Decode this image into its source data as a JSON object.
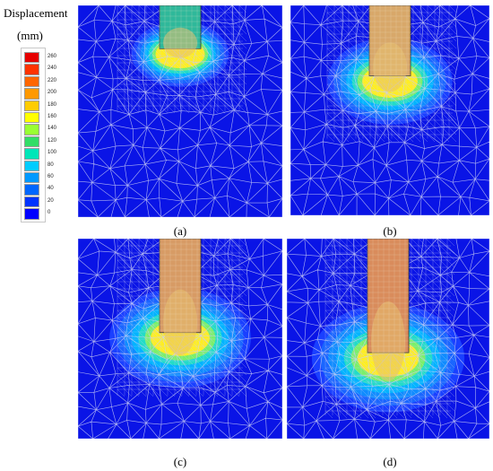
{
  "legend": {
    "title": "Displacement",
    "unit": "(mm)",
    "ticks": [
      "260",
      "240",
      "220",
      "200",
      "180",
      "160",
      "140",
      "120",
      "100",
      "80",
      "60",
      "40",
      "20",
      "0"
    ],
    "colors": [
      "#e60000",
      "#ff3300",
      "#ff6600",
      "#ff9900",
      "#ffcc00",
      "#ffff00",
      "#99ff33",
      "#33dd66",
      "#00e6b8",
      "#00ccff",
      "#0099ff",
      "#0066ff",
      "#0033ff",
      "#0000ff"
    ]
  },
  "panels": [
    {
      "id": "a",
      "caption": "(a)",
      "pile_color": "#2fb89a",
      "bulb_scale": 0.55,
      "penetration": 0.12
    },
    {
      "id": "b",
      "caption": "(b)",
      "pile_color": "#d8a86a",
      "bulb_scale": 0.8,
      "penetration": 0.25
    },
    {
      "id": "c",
      "caption": "(c)",
      "pile_color": "#d79b65",
      "bulb_scale": 0.95,
      "penetration": 0.38
    },
    {
      "id": "d",
      "caption": "(d)",
      "pile_color": "#d98c5c",
      "bulb_scale": 1.05,
      "penetration": 0.48
    }
  ],
  "colors": {
    "soil": "#0a14e6",
    "mesh": "#c9ccf5"
  }
}
